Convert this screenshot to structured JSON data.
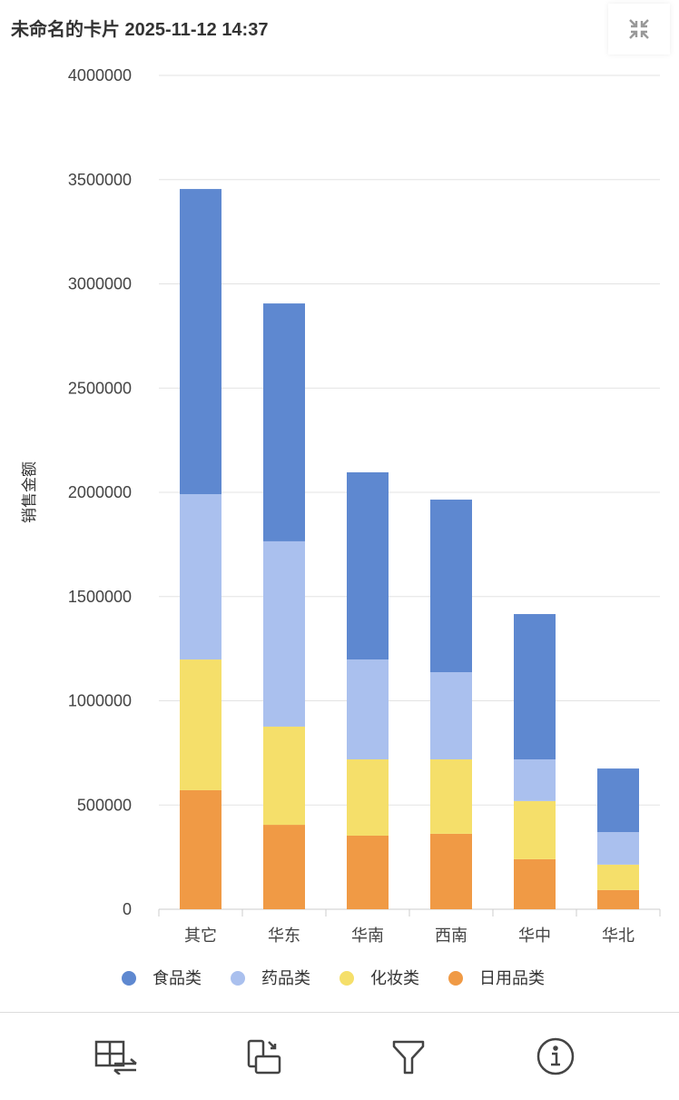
{
  "header": {
    "title": "未命名的卡片 2025-11-12 14:37",
    "collapse_icon": "collapse-arrows-icon"
  },
  "chart_data": {
    "type": "bar",
    "stacked": true,
    "title": "",
    "xlabel": "",
    "ylabel": "销售金额",
    "ylim": [
      0,
      4000000
    ],
    "yticks": [
      0,
      500000,
      1000000,
      1500000,
      2000000,
      2500000,
      3000000,
      3500000,
      4000000
    ],
    "grid": true,
    "legend_position": "bottom",
    "categories": [
      "其它",
      "华东",
      "华南",
      "西南",
      "华中",
      "华北"
    ],
    "series": [
      {
        "name": "日用品类",
        "color": "#f09a45",
        "values": [
          571000,
          405000,
          353000,
          362000,
          240000,
          92000
        ]
      },
      {
        "name": "化妆类",
        "color": "#f5df6a",
        "values": [
          627000,
          471000,
          366000,
          357000,
          279000,
          122000
        ]
      },
      {
        "name": "药品类",
        "color": "#aac0ee",
        "values": [
          793000,
          889000,
          479000,
          418000,
          200000,
          156000
        ]
      },
      {
        "name": "食品类",
        "color": "#5e88d0",
        "values": [
          1464000,
          1141000,
          898000,
          828000,
          697000,
          305000
        ]
      }
    ],
    "legend_order": [
      "食品类",
      "药品类",
      "化妆类",
      "日用品类"
    ]
  },
  "footer": {
    "icons": [
      "table-swap-icon",
      "rotate-icon",
      "filter-icon",
      "info-icon"
    ]
  }
}
